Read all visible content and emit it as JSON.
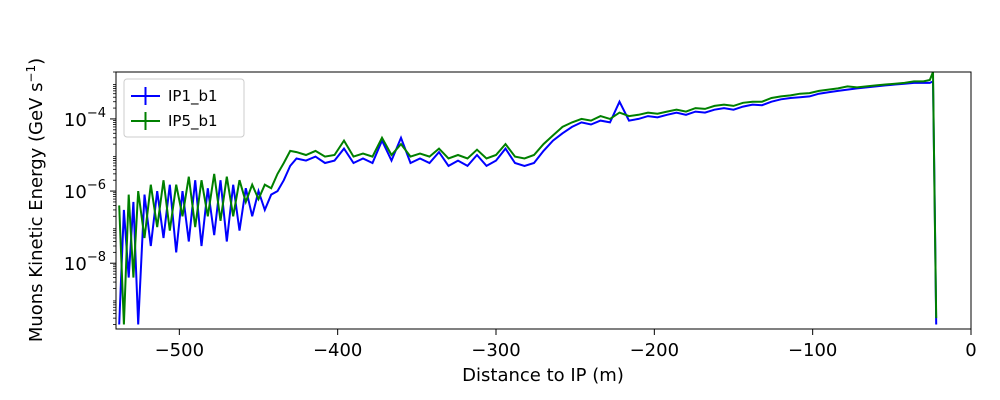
{
  "chart_data": {
    "type": "line",
    "xlabel": "Distance to IP (m)",
    "ylabel": "Muons Kinetic Energy (GeV s^-1)",
    "yscale": "log",
    "xlim": [
      -540,
      0
    ],
    "ylim": [
      1.5e-10,
      0.002
    ],
    "grid": false,
    "legend_placement": "top-left",
    "x_ticks": [
      {
        "value": -500,
        "label": "−500"
      },
      {
        "value": -400,
        "label": "−400"
      },
      {
        "value": -300,
        "label": "−300"
      },
      {
        "value": -200,
        "label": "−200"
      },
      {
        "value": -100,
        "label": "−100"
      },
      {
        "value": 0,
        "label": "0"
      }
    ],
    "y_ticks": [
      {
        "value": 1e-08,
        "base": "10",
        "exp": "−8"
      },
      {
        "value": 1e-06,
        "base": "10",
        "exp": "−6"
      },
      {
        "value": 0.0001,
        "base": "10",
        "exp": "−4"
      }
    ],
    "series": [
      {
        "name": "IP1_b1",
        "color": "#0000ff",
        "points": [
          [
            -538,
            2e-10
          ],
          [
            -535,
            3e-07
          ],
          [
            -532,
            4e-09
          ],
          [
            -529,
            5e-07
          ],
          [
            -526,
            2e-10
          ],
          [
            -522,
            8e-07
          ],
          [
            -518,
            3e-08
          ],
          [
            -514,
            1e-06
          ],
          [
            -510,
            5e-08
          ],
          [
            -506,
            1.5e-06
          ],
          [
            -502,
            2e-08
          ],
          [
            -498,
            1e-06
          ],
          [
            -494,
            4e-08
          ],
          [
            -490,
            2e-06
          ],
          [
            -486,
            3e-08
          ],
          [
            -482,
            1.2e-06
          ],
          [
            -478,
            6e-08
          ],
          [
            -474,
            2e-06
          ],
          [
            -470,
            4e-08
          ],
          [
            -466,
            1.5e-06
          ],
          [
            -462,
            8e-08
          ],
          [
            -458,
            1.2e-06
          ],
          [
            -454,
            2e-07
          ],
          [
            -450,
            1e-06
          ],
          [
            -446,
            3e-07
          ],
          [
            -442,
            8e-07
          ],
          [
            -438,
            1e-06
          ],
          [
            -434,
            2e-06
          ],
          [
            -430,
            5e-06
          ],
          [
            -426,
            8e-06
          ],
          [
            -420,
            7e-06
          ],
          [
            -414,
            9e-06
          ],
          [
            -408,
            6e-06
          ],
          [
            -402,
            7e-06
          ],
          [
            -396,
            1.5e-05
          ],
          [
            -390,
            6e-06
          ],
          [
            -384,
            8e-06
          ],
          [
            -378,
            6e-06
          ],
          [
            -372,
            2.5e-05
          ],
          [
            -366,
            7e-06
          ],
          [
            -360,
            3e-05
          ],
          [
            -354,
            6e-06
          ],
          [
            -348,
            8e-06
          ],
          [
            -342,
            6e-06
          ],
          [
            -336,
            1.2e-05
          ],
          [
            -330,
            5e-06
          ],
          [
            -324,
            7e-06
          ],
          [
            -318,
            5e-06
          ],
          [
            -312,
            1e-05
          ],
          [
            -306,
            5e-06
          ],
          [
            -300,
            7e-06
          ],
          [
            -294,
            1.5e-05
          ],
          [
            -288,
            6e-06
          ],
          [
            -282,
            5e-06
          ],
          [
            -276,
            6e-06
          ],
          [
            -270,
            1.3e-05
          ],
          [
            -264,
            2.5e-05
          ],
          [
            -258,
            4e-05
          ],
          [
            -252,
            6e-05
          ],
          [
            -246,
            8e-05
          ],
          [
            -240,
            7e-05
          ],
          [
            -234,
            9e-05
          ],
          [
            -228,
            8e-05
          ],
          [
            -222,
            0.0003
          ],
          [
            -216,
            9e-05
          ],
          [
            -210,
            0.0001
          ],
          [
            -204,
            0.00012
          ],
          [
            -198,
            0.00011
          ],
          [
            -192,
            0.00013
          ],
          [
            -186,
            0.00015
          ],
          [
            -180,
            0.00013
          ],
          [
            -174,
            0.00016
          ],
          [
            -168,
            0.00015
          ],
          [
            -162,
            0.00018
          ],
          [
            -156,
            0.0002
          ],
          [
            -150,
            0.00018
          ],
          [
            -144,
            0.00022
          ],
          [
            -138,
            0.00025
          ],
          [
            -132,
            0.00024
          ],
          [
            -126,
            0.0003
          ],
          [
            -120,
            0.00035
          ],
          [
            -114,
            0.00038
          ],
          [
            -108,
            0.0004
          ],
          [
            -102,
            0.00042
          ],
          [
            -96,
            0.0005
          ],
          [
            -90,
            0.00055
          ],
          [
            -84,
            0.0006
          ],
          [
            -78,
            0.00065
          ],
          [
            -72,
            0.0007
          ],
          [
            -66,
            0.00075
          ],
          [
            -60,
            0.0008
          ],
          [
            -54,
            0.00085
          ],
          [
            -48,
            0.0009
          ],
          [
            -42,
            0.00095
          ],
          [
            -36,
            0.001
          ],
          [
            -30,
            0.001
          ],
          [
            -26,
            0.001
          ],
          [
            -24,
            0.0011
          ],
          [
            -23,
            8e-07
          ],
          [
            -22,
            2e-10
          ]
        ]
      },
      {
        "name": "IP5_b1",
        "color": "#008000",
        "points": [
          [
            -538,
            4e-07
          ],
          [
            -535,
            2e-10
          ],
          [
            -532,
            8e-07
          ],
          [
            -529,
            4e-09
          ],
          [
            -526,
            1e-06
          ],
          [
            -522,
            5e-08
          ],
          [
            -518,
            1.5e-06
          ],
          [
            -514,
            1e-07
          ],
          [
            -510,
            2e-06
          ],
          [
            -506,
            8e-08
          ],
          [
            -502,
            1.5e-06
          ],
          [
            -498,
            2e-07
          ],
          [
            -494,
            2.5e-06
          ],
          [
            -490,
            1e-07
          ],
          [
            -486,
            2e-06
          ],
          [
            -482,
            2e-07
          ],
          [
            -478,
            3e-06
          ],
          [
            -474,
            1.5e-07
          ],
          [
            -470,
            2.5e-06
          ],
          [
            -466,
            2e-07
          ],
          [
            -462,
            2e-06
          ],
          [
            -458,
            5e-07
          ],
          [
            -454,
            1.5e-06
          ],
          [
            -450,
            6e-07
          ],
          [
            -446,
            1.5e-06
          ],
          [
            -442,
            1.2e-06
          ],
          [
            -438,
            3e-06
          ],
          [
            -434,
            6e-06
          ],
          [
            -430,
            1.3e-05
          ],
          [
            -426,
            1.2e-05
          ],
          [
            -420,
            1e-05
          ],
          [
            -414,
            1.3e-05
          ],
          [
            -408,
            9e-06
          ],
          [
            -402,
            1e-05
          ],
          [
            -396,
            2.5e-05
          ],
          [
            -390,
            9e-06
          ],
          [
            -384,
            1.1e-05
          ],
          [
            -378,
            9e-06
          ],
          [
            -372,
            3e-05
          ],
          [
            -366,
            1e-05
          ],
          [
            -360,
            2e-05
          ],
          [
            -354,
            9e-06
          ],
          [
            -348,
            1.1e-05
          ],
          [
            -342,
            9e-06
          ],
          [
            -336,
            1.5e-05
          ],
          [
            -330,
            8e-06
          ],
          [
            -324,
            1e-05
          ],
          [
            -318,
            8e-06
          ],
          [
            -312,
            1.4e-05
          ],
          [
            -306,
            8e-06
          ],
          [
            -300,
            1e-05
          ],
          [
            -294,
            2e-05
          ],
          [
            -288,
            9e-06
          ],
          [
            -282,
            8e-06
          ],
          [
            -276,
            1e-05
          ],
          [
            -270,
            2e-05
          ],
          [
            -264,
            3.5e-05
          ],
          [
            -258,
            6e-05
          ],
          [
            -252,
            8e-05
          ],
          [
            -246,
            0.0001
          ],
          [
            -240,
            9e-05
          ],
          [
            -234,
            0.00012
          ],
          [
            -228,
            0.0001
          ],
          [
            -222,
            0.00015
          ],
          [
            -216,
            0.00012
          ],
          [
            -210,
            0.00013
          ],
          [
            -204,
            0.00015
          ],
          [
            -198,
            0.00014
          ],
          [
            -192,
            0.00016
          ],
          [
            -186,
            0.00018
          ],
          [
            -180,
            0.00016
          ],
          [
            -174,
            0.0002
          ],
          [
            -168,
            0.00019
          ],
          [
            -162,
            0.00023
          ],
          [
            -156,
            0.00025
          ],
          [
            -150,
            0.00023
          ],
          [
            -144,
            0.00028
          ],
          [
            -138,
            0.0003
          ],
          [
            -132,
            0.0003
          ],
          [
            -126,
            0.00038
          ],
          [
            -120,
            0.00042
          ],
          [
            -114,
            0.00045
          ],
          [
            -108,
            0.0005
          ],
          [
            -102,
            0.00052
          ],
          [
            -96,
            0.0006
          ],
          [
            -90,
            0.00065
          ],
          [
            -84,
            0.0007
          ],
          [
            -78,
            0.0008
          ],
          [
            -72,
            0.00075
          ],
          [
            -66,
            0.0008
          ],
          [
            -60,
            0.00085
          ],
          [
            -54,
            0.0009
          ],
          [
            -48,
            0.00095
          ],
          [
            -42,
            0.001
          ],
          [
            -36,
            0.0011
          ],
          [
            -30,
            0.0011
          ],
          [
            -26,
            0.0012
          ],
          [
            -24,
            0.002
          ],
          [
            -23,
            5e-07
          ],
          [
            -22,
            3e-10
          ]
        ]
      }
    ]
  }
}
